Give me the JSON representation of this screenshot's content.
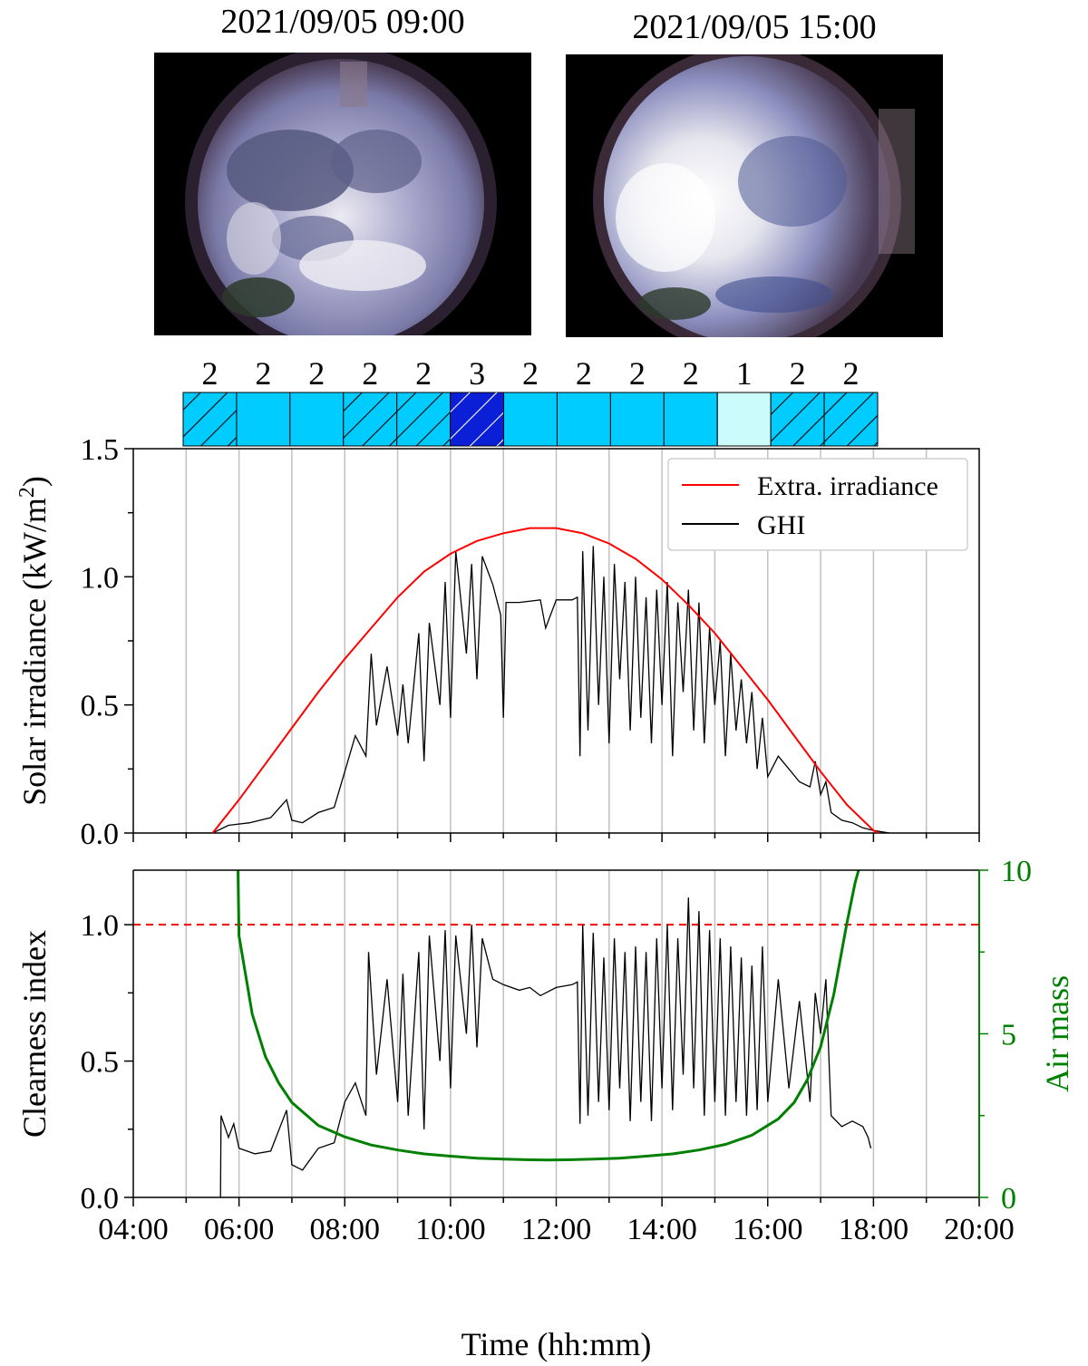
{
  "photos": [
    {
      "caption": "2021/09/05 09:00",
      "sky": "sky-image-morning"
    },
    {
      "caption": "2021/09/05 15:00",
      "sky": "sky-image-afternoon"
    }
  ],
  "cloud_bar": {
    "labels": [
      "2",
      "2",
      "2",
      "2",
      "2",
      "3",
      "2",
      "2",
      "2",
      "2",
      "1",
      "2",
      "2"
    ],
    "categories": [
      2,
      2,
      2,
      2,
      2,
      3,
      2,
      2,
      2,
      2,
      1,
      2,
      2
    ],
    "hatched": [
      true,
      false,
      false,
      true,
      true,
      true,
      false,
      false,
      false,
      false,
      false,
      true,
      true
    ],
    "colors": {
      "1": "#ccfbfb",
      "2": "#00ccff",
      "3": "#0a1fd6"
    }
  },
  "chart_data": [
    {
      "type": "line",
      "title": "",
      "xlabel": "",
      "ylabel": "Solar irradiance (kW/m²)",
      "xlim": [
        4,
        20
      ],
      "ylim": [
        0,
        1.5
      ],
      "yticks": [
        "0.0",
        "0.5",
        "1.0",
        "1.5"
      ],
      "legend": "top-right",
      "series": [
        {
          "name": "Extra. irradiance",
          "color": "#ff0000",
          "x": [
            5.5,
            6,
            6.5,
            7,
            7.5,
            8,
            8.5,
            9,
            9.5,
            10,
            10.5,
            11,
            11.5,
            11.8,
            12,
            12.5,
            13,
            13.5,
            14,
            14.5,
            15,
            15.5,
            16,
            16.5,
            17,
            17.5,
            18,
            18.1
          ],
          "y": [
            0.0,
            0.13,
            0.27,
            0.41,
            0.55,
            0.68,
            0.8,
            0.92,
            1.02,
            1.09,
            1.14,
            1.17,
            1.19,
            1.19,
            1.19,
            1.17,
            1.13,
            1.07,
            0.99,
            0.89,
            0.78,
            0.65,
            0.52,
            0.38,
            0.24,
            0.11,
            0.01,
            0.0
          ]
        },
        {
          "name": "GHI",
          "color": "#000000",
          "x": [
            4.5,
            5.5,
            5.8,
            6.2,
            6.6,
            6.9,
            7.0,
            7.2,
            7.5,
            7.8,
            8.0,
            8.2,
            8.4,
            8.5,
            8.6,
            8.8,
            9.0,
            9.1,
            9.2,
            9.4,
            9.5,
            9.6,
            9.8,
            9.9,
            10.0,
            10.1,
            10.3,
            10.4,
            10.5,
            10.6,
            10.8,
            10.95,
            11.0,
            11.05,
            11.3,
            11.7,
            11.8,
            12.0,
            12.3,
            12.4,
            12.45,
            12.5,
            12.6,
            12.7,
            12.8,
            12.9,
            13.0,
            13.1,
            13.2,
            13.3,
            13.4,
            13.5,
            13.6,
            13.7,
            13.8,
            13.9,
            14.0,
            14.1,
            14.2,
            14.3,
            14.4,
            14.5,
            14.6,
            14.7,
            14.8,
            14.9,
            15.0,
            15.1,
            15.2,
            15.3,
            15.4,
            15.5,
            15.6,
            15.7,
            15.8,
            15.9,
            16.0,
            16.2,
            16.4,
            16.6,
            16.8,
            16.9,
            17.0,
            17.1,
            17.2,
            17.4,
            17.6,
            17.8,
            18.0,
            18.3
          ],
          "y": [
            0.0,
            0.0,
            0.03,
            0.04,
            0.06,
            0.13,
            0.05,
            0.04,
            0.08,
            0.1,
            0.24,
            0.38,
            0.3,
            0.7,
            0.42,
            0.65,
            0.38,
            0.58,
            0.35,
            0.78,
            0.28,
            0.82,
            0.5,
            0.98,
            0.45,
            1.1,
            0.7,
            1.05,
            0.6,
            1.08,
            0.97,
            0.85,
            0.45,
            0.9,
            0.9,
            0.91,
            0.8,
            0.91,
            0.91,
            0.92,
            0.3,
            1.1,
            0.4,
            1.12,
            0.5,
            1.0,
            0.35,
            1.05,
            0.6,
            0.98,
            0.4,
            1.0,
            0.45,
            0.92,
            0.35,
            0.95,
            0.5,
            0.98,
            0.3,
            0.9,
            0.55,
            0.95,
            0.4,
            0.9,
            0.35,
            0.8,
            0.5,
            0.75,
            0.3,
            0.7,
            0.4,
            0.6,
            0.35,
            0.55,
            0.25,
            0.45,
            0.22,
            0.3,
            0.25,
            0.2,
            0.18,
            0.28,
            0.15,
            0.2,
            0.08,
            0.05,
            0.04,
            0.02,
            0.01,
            0.0
          ]
        }
      ]
    },
    {
      "type": "line",
      "title": "",
      "xlabel": "Time (hh:mm)",
      "ylabel": "Clearness index",
      "y2label": "Air mass",
      "xlim": [
        4,
        20
      ],
      "ylim": [
        0,
        1.2
      ],
      "y2lim": [
        0,
        10
      ],
      "xticks": [
        "04:00",
        "06:00",
        "08:00",
        "10:00",
        "12:00",
        "14:00",
        "16:00",
        "18:00",
        "20:00"
      ],
      "yticks": [
        "0.0",
        "0.5",
        "1.0"
      ],
      "y2ticks": [
        "0",
        "5",
        "10"
      ],
      "reference_line": {
        "y": 1.0,
        "color": "#ff0000",
        "style": "dashed"
      },
      "series": [
        {
          "name": "Clearness index",
          "color": "#000000",
          "x": [
            5.65,
            5.66,
            5.8,
            5.9,
            6.0,
            6.3,
            6.6,
            6.9,
            7.0,
            7.2,
            7.5,
            7.8,
            8.0,
            8.2,
            8.4,
            8.45,
            8.6,
            8.8,
            9.0,
            9.1,
            9.2,
            9.4,
            9.5,
            9.6,
            9.8,
            9.9,
            10.0,
            10.1,
            10.3,
            10.4,
            10.5,
            10.6,
            10.8,
            11.0,
            11.3,
            11.5,
            11.7,
            12.0,
            12.3,
            12.4,
            12.45,
            12.5,
            12.6,
            12.7,
            12.8,
            12.9,
            13.0,
            13.1,
            13.2,
            13.3,
            13.4,
            13.5,
            13.6,
            13.7,
            13.8,
            13.9,
            14.0,
            14.1,
            14.2,
            14.3,
            14.4,
            14.5,
            14.6,
            14.7,
            14.8,
            14.9,
            15.0,
            15.1,
            15.2,
            15.3,
            15.4,
            15.5,
            15.6,
            15.7,
            15.8,
            15.9,
            16.0,
            16.2,
            16.4,
            16.6,
            16.8,
            16.9,
            17.0,
            17.1,
            17.2,
            17.4,
            17.6,
            17.8,
            17.9,
            17.95
          ],
          "y": [
            0.0,
            0.3,
            0.22,
            0.27,
            0.18,
            0.16,
            0.17,
            0.32,
            0.12,
            0.1,
            0.18,
            0.2,
            0.35,
            0.42,
            0.3,
            0.9,
            0.45,
            0.8,
            0.35,
            0.82,
            0.3,
            0.9,
            0.25,
            0.96,
            0.5,
            0.98,
            0.4,
            0.96,
            0.6,
            1.0,
            0.55,
            0.95,
            0.8,
            0.78,
            0.76,
            0.77,
            0.74,
            0.77,
            0.78,
            0.79,
            0.27,
            1.0,
            0.3,
            0.97,
            0.35,
            0.88,
            0.32,
            0.95,
            0.4,
            0.9,
            0.28,
            0.92,
            0.35,
            0.9,
            0.28,
            0.95,
            0.4,
            1.0,
            0.32,
            0.95,
            0.45,
            1.1,
            0.4,
            1.05,
            0.3,
            0.98,
            0.35,
            0.95,
            0.3,
            0.92,
            0.35,
            0.88,
            0.3,
            0.85,
            0.32,
            0.92,
            0.35,
            0.8,
            0.4,
            0.72,
            0.35,
            0.75,
            0.6,
            0.8,
            0.3,
            0.26,
            0.28,
            0.26,
            0.22,
            0.18
          ]
        },
        {
          "name": "Air mass",
          "color": "#008000",
          "axis": "right",
          "x": [
            5.98,
            6.0,
            6.25,
            6.5,
            6.75,
            7.0,
            7.5,
            8.0,
            8.5,
            9.0,
            9.5,
            10.0,
            10.5,
            11.0,
            11.5,
            11.85,
            12.2,
            12.7,
            13.2,
            13.7,
            14.2,
            14.7,
            15.2,
            15.7,
            16.2,
            16.5,
            16.75,
            17.0,
            17.25,
            17.5,
            17.65,
            17.72
          ],
          "y": [
            10.0,
            8.0,
            5.6,
            4.3,
            3.5,
            2.9,
            2.2,
            1.85,
            1.6,
            1.45,
            1.33,
            1.26,
            1.2,
            1.17,
            1.15,
            1.14,
            1.15,
            1.17,
            1.2,
            1.26,
            1.33,
            1.45,
            1.62,
            1.9,
            2.4,
            2.9,
            3.6,
            4.6,
            6.2,
            8.4,
            9.6,
            10.0
          ]
        }
      ]
    }
  ]
}
